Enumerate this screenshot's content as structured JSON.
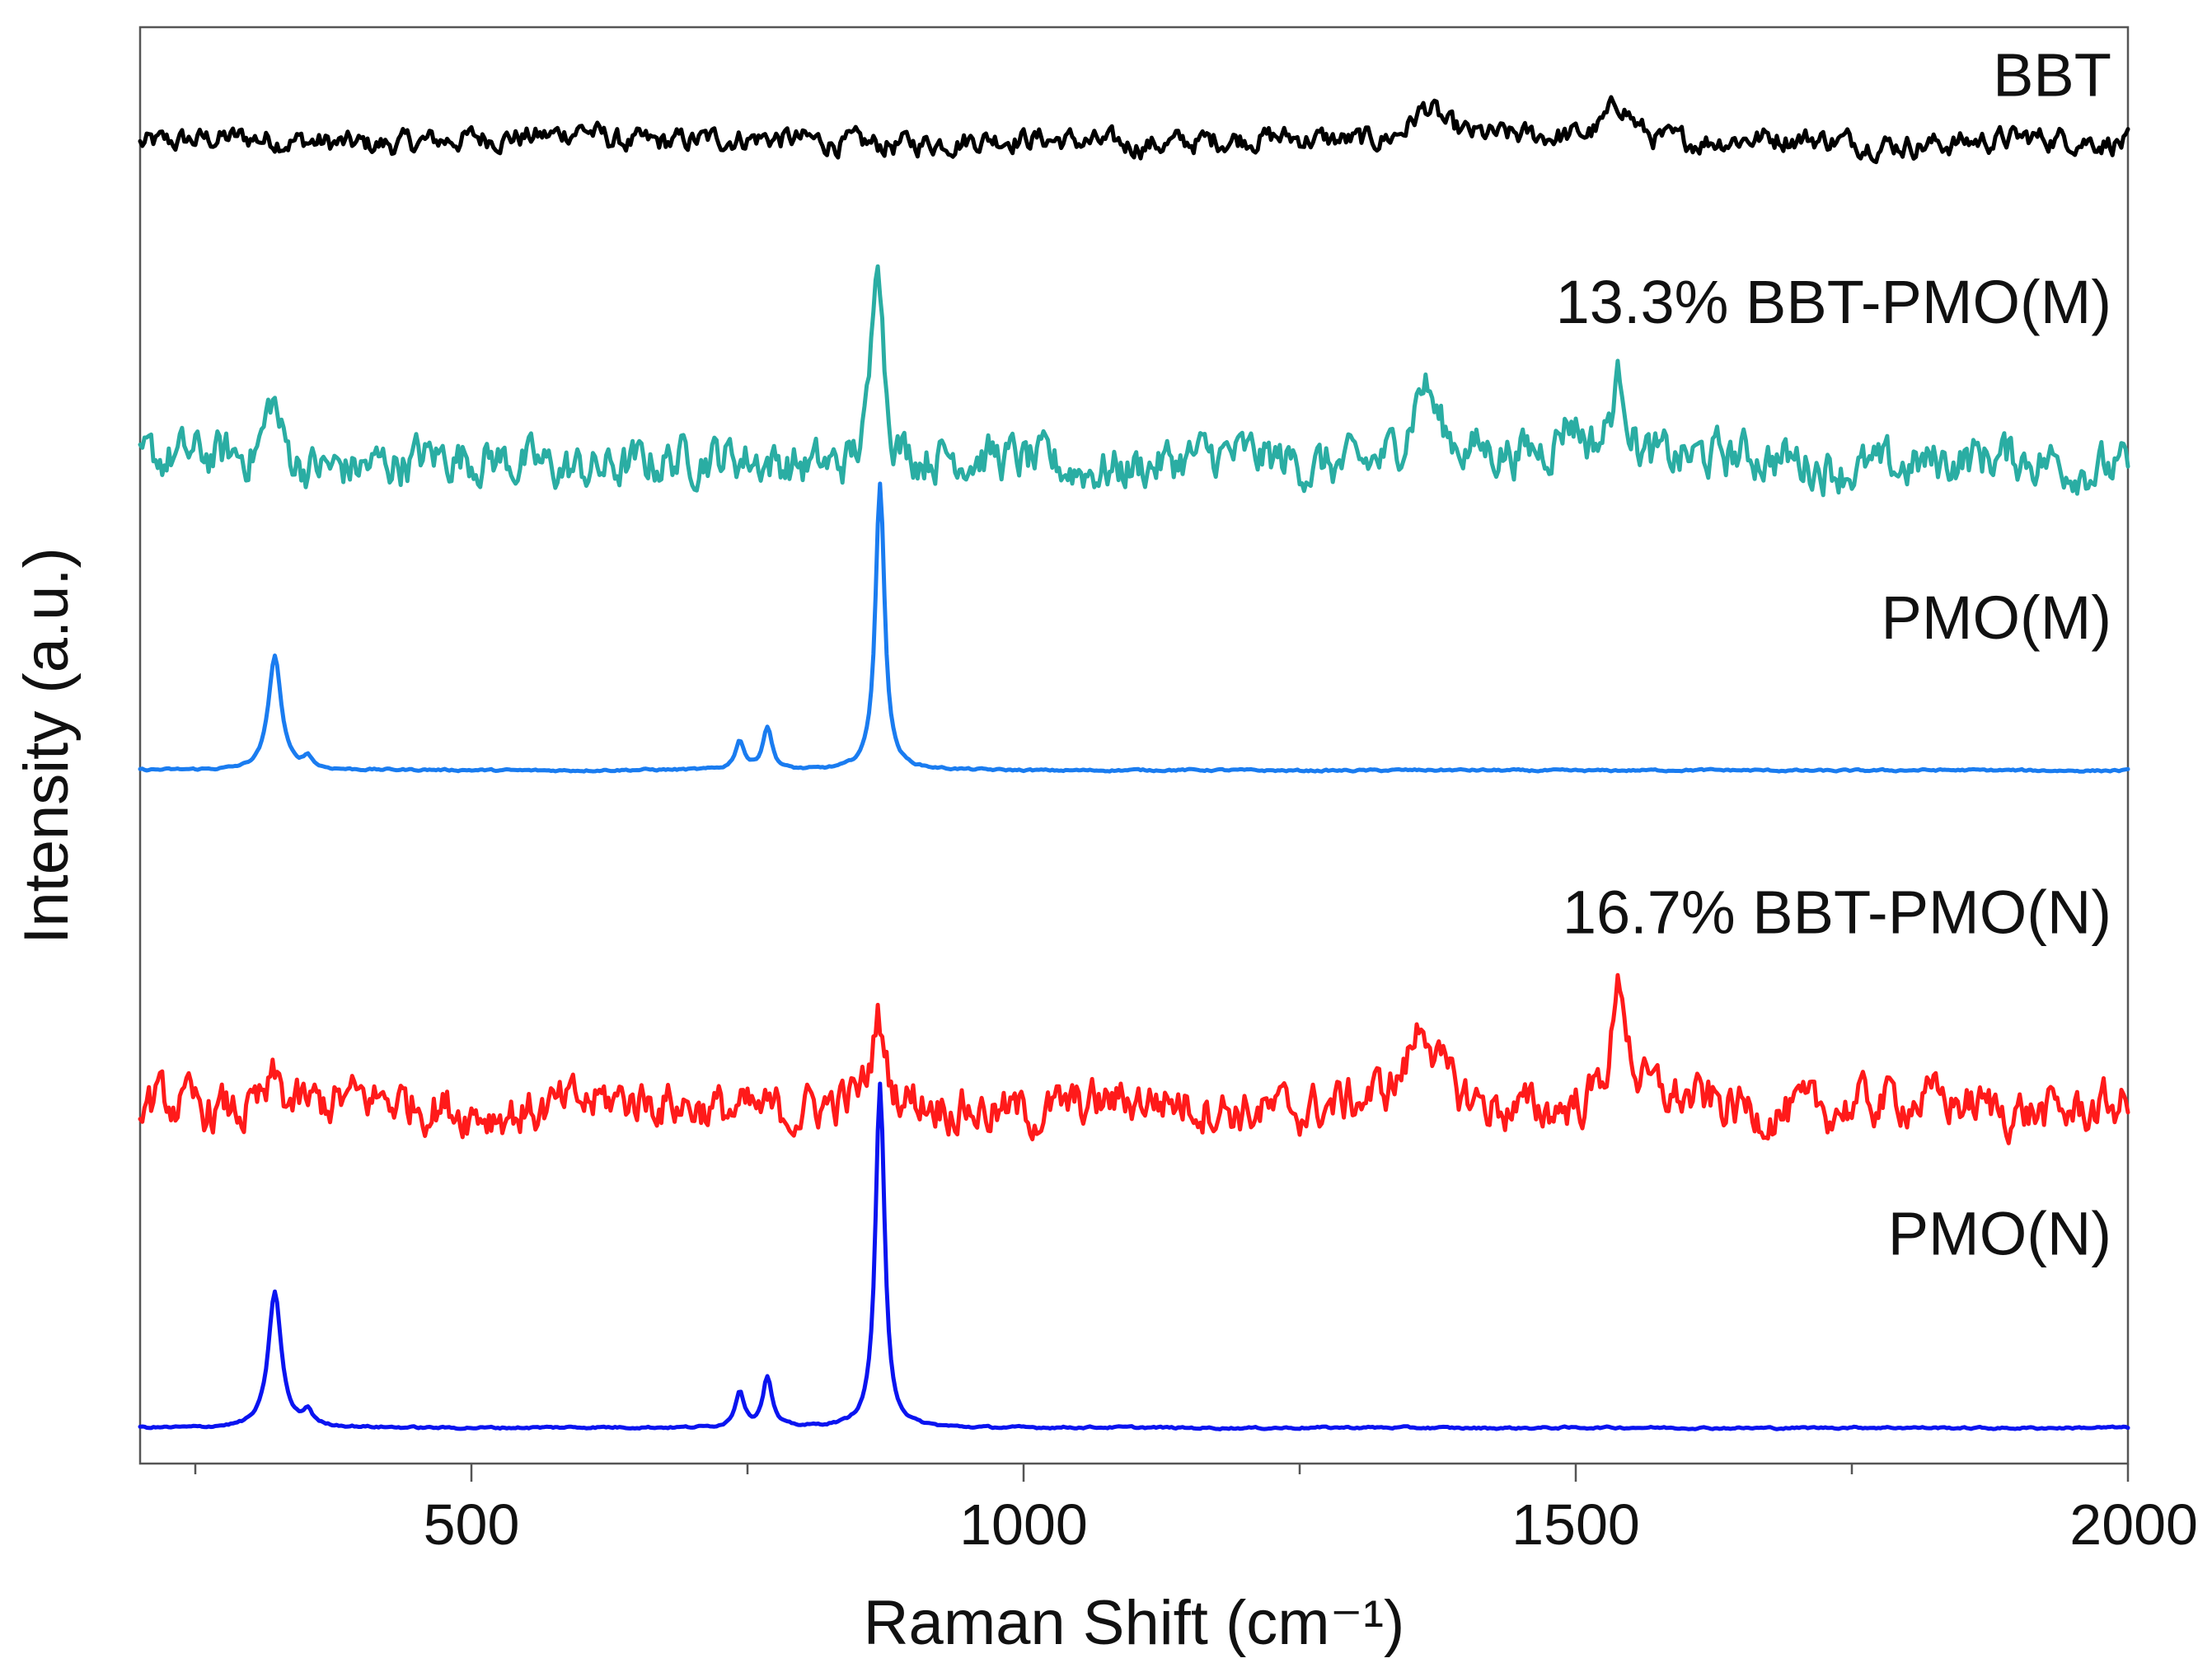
{
  "chart_data": {
    "type": "line",
    "xlabel": "Raman Shift (cm⁻¹)",
    "ylabel": "Intensity (a.u.)",
    "xlim": [
      200,
      2000
    ],
    "xticks_major": [
      500,
      1000,
      1500,
      2000
    ],
    "xticks_minor": [
      250,
      750,
      1250,
      1750
    ],
    "y_units": "arbitrary, curves vertically offset",
    "series": [
      {
        "name": "BBT",
        "color": "#000000",
        "baseline": 9.05,
        "noise": 0.06,
        "peaks": [
          {
            "x": 1365,
            "height": 0.25,
            "width": 18
          },
          {
            "x": 1540,
            "height": 0.28,
            "width": 15
          },
          {
            "x": 600,
            "height": 0.1,
            "width": 20
          }
        ]
      },
      {
        "name": "13.3% BBT-PMO(M)",
        "color": "#2aada3",
        "baseline": 6.8,
        "noise": 0.12,
        "peaks": [
          {
            "x": 320,
            "height": 0.45,
            "width": 8
          },
          {
            "x": 868,
            "height": 1.6,
            "width": 6
          },
          {
            "x": 1362,
            "height": 0.55,
            "width": 14
          },
          {
            "x": 1495,
            "height": 0.3,
            "width": 15
          },
          {
            "x": 1540,
            "height": 0.6,
            "width": 10
          }
        ]
      },
      {
        "name": "PMO(M)",
        "color": "#1a7cf0",
        "baseline": 4.65,
        "noise": 0.005,
        "peaks": [
          {
            "x": 322,
            "height": 0.8,
            "width": 7
          },
          {
            "x": 352,
            "height": 0.08,
            "width": 5
          },
          {
            "x": 743,
            "height": 0.2,
            "width": 5
          },
          {
            "x": 768,
            "height": 0.3,
            "width": 5
          },
          {
            "x": 870,
            "height": 2.0,
            "width": 5
          }
        ]
      },
      {
        "name": "16.7% BBT-PMO(N)",
        "color": "#ff1a1a",
        "baseline": 2.3,
        "noise": 0.12,
        "peaks": [
          {
            "x": 322,
            "height": 0.2,
            "width": 8
          },
          {
            "x": 868,
            "height": 0.6,
            "width": 6
          },
          {
            "x": 1362,
            "height": 0.55,
            "width": 14
          },
          {
            "x": 1540,
            "height": 0.8,
            "width": 9
          }
        ]
      },
      {
        "name": "PMO(N)",
        "color": "#0a14f0",
        "baseline": 0.05,
        "noise": 0.005,
        "peaks": [
          {
            "x": 322,
            "height": 0.95,
            "width": 7
          },
          {
            "x": 352,
            "height": 0.1,
            "width": 5
          },
          {
            "x": 743,
            "height": 0.25,
            "width": 5
          },
          {
            "x": 768,
            "height": 0.35,
            "width": 5
          },
          {
            "x": 870,
            "height": 2.4,
            "width": 5
          }
        ]
      }
    ]
  }
}
